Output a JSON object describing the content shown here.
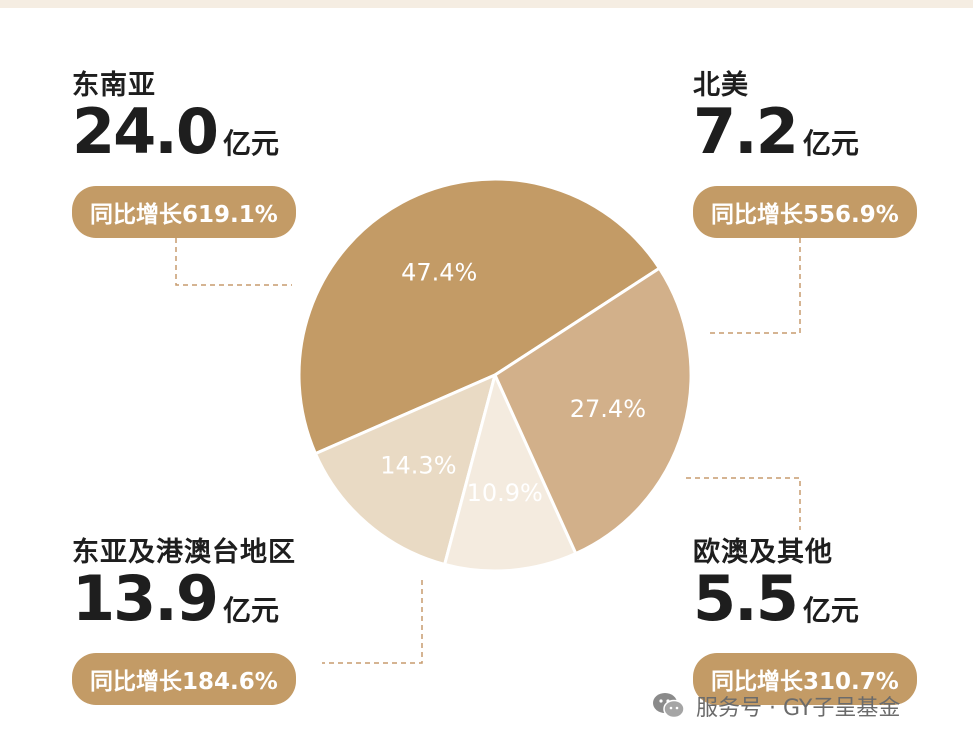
{
  "chart_data": {
    "type": "pie",
    "slices": [
      {
        "label": "东南亚",
        "percent_label": "47.4%",
        "value": 47.4,
        "color": "#c39b66"
      },
      {
        "label": "北美",
        "percent_label": "14.3%",
        "value": 14.3,
        "color": "#e9dac4"
      },
      {
        "label": "欧澳及其他",
        "percent_label": "10.9%",
        "value": 10.9,
        "color": "#f4ebdf"
      },
      {
        "label": "东亚及港澳台地区",
        "percent_label": "27.4%",
        "value": 27.4,
        "color": "#d2b08a"
      }
    ]
  },
  "regions": {
    "sea": {
      "name": "东南亚",
      "amount": "24.0",
      "unit": "亿元",
      "growth": "同比增长619.1%"
    },
    "na": {
      "name": "北美",
      "amount": "7.2",
      "unit": "亿元",
      "growth": "同比增长556.9%"
    },
    "ea": {
      "name": "东亚及港澳台地区",
      "amount": "13.9",
      "unit": "亿元",
      "growth": "同比增长184.6%"
    },
    "eu": {
      "name": "欧澳及其他",
      "amount": "5.5",
      "unit": "亿元",
      "growth": "同比增长310.7%"
    }
  },
  "watermark": {
    "text": "服务号 · GY子呈基金",
    "icon": "wechat-icon"
  },
  "colors": {
    "pill": "#c39b66",
    "leader": "#c79c6e"
  }
}
